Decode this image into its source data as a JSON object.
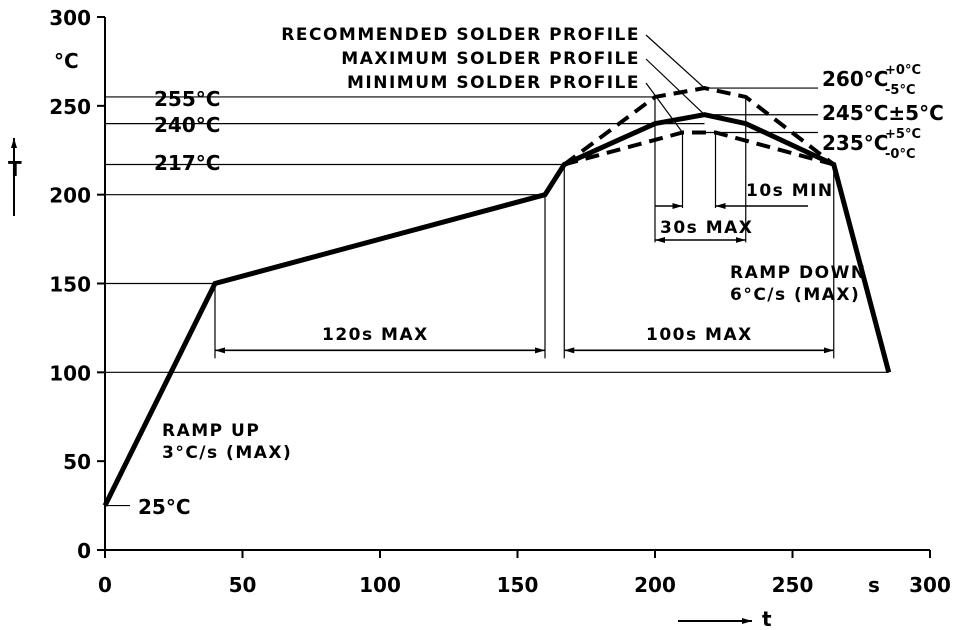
{
  "chart_data": {
    "type": "line",
    "title": "",
    "xlabel": "t",
    "ylabel": "T",
    "x_unit": "s",
    "y_unit": "°C",
    "xlim": [
      0,
      300
    ],
    "ylim": [
      0,
      300
    ],
    "x_ticks": [
      "0",
      "50",
      "100",
      "150",
      "200",
      "250",
      "300"
    ],
    "y_ticks": [
      "0",
      "50",
      "100",
      "150",
      "200",
      "250",
      "300"
    ],
    "series": [
      {
        "name": "RECOMMENDED SOLDER PROFILE",
        "style": "solid",
        "x": [
          0,
          40,
          160,
          167,
          200,
          218,
          233,
          265,
          285
        ],
        "y": [
          25,
          150,
          200,
          217,
          240,
          245,
          240,
          217,
          100
        ]
      },
      {
        "name": "MAXIMUM SOLDER PROFILE",
        "style": "dashed",
        "x": [
          167,
          200,
          218,
          233,
          265
        ],
        "y": [
          217,
          255,
          260,
          255,
          217
        ]
      },
      {
        "name": "MINIMUM SOLDER PROFILE",
        "style": "dashed",
        "x": [
          167,
          210,
          218,
          222,
          265
        ],
        "y": [
          217,
          235,
          235,
          235,
          217
        ]
      }
    ],
    "temperature_labels": {
      "t255": "255°C",
      "t240": "240°C",
      "t217": "217°C",
      "t25": "25°C",
      "t260": "260°C",
      "t260_plus": "+0°C",
      "t260_minus": "-5°C",
      "t245": "245°C±5°C",
      "t235": "235°C",
      "t235_plus": "+5°C",
      "t235_minus": "-0°C"
    },
    "annotations": {
      "ramp_up_1": "RAMP UP",
      "ramp_up_2": "3°C/s (MAX)",
      "ramp_down_1": "RAMP DOWN",
      "ramp_down_2": "6°C/s (MAX)",
      "d120": "120s MAX",
      "d100": "100s MAX",
      "d30": "30s MAX",
      "d10": "10s MIN"
    }
  }
}
